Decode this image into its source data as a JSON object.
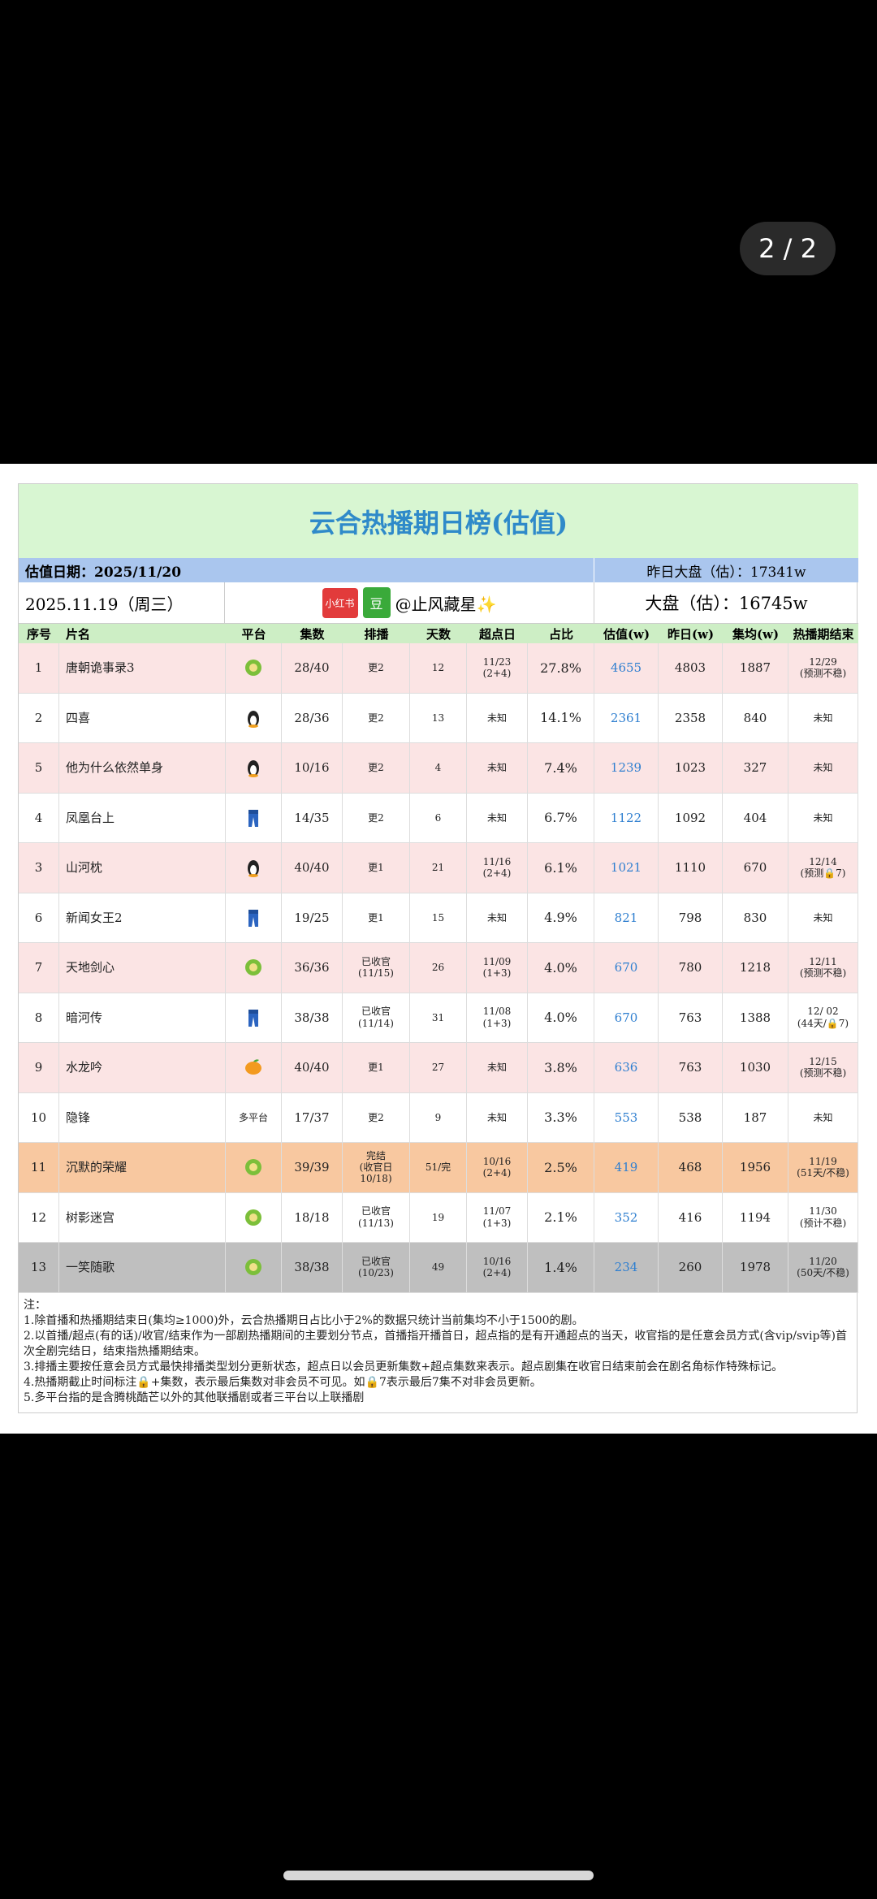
{
  "screen": {
    "page_indicator": "2 / 2"
  },
  "table": {
    "title": "云合热播期日榜(估值)",
    "date_label": "估值日期：2025/11/20",
    "yesterday_total": "昨日大盘（估）：17341w",
    "date": "2025.11.19（周三）",
    "badges": [
      "小红书",
      "豆"
    ],
    "author": "@止风藏星✨",
    "total": "大盘（估）：16745w",
    "headers": [
      "序号",
      "片名",
      "平台",
      "集数",
      "排播",
      "天数",
      "超点日",
      "占比",
      "估值(w)",
      "昨日(w)",
      "集均(w)",
      "热播期结束"
    ],
    "rows": [
      [
        1,
        "唐朝诡事录3",
        null,
        "28/40",
        "更2",
        12,
        [
          "11/23",
          "(2+4)"
        ],
        "27.8%",
        4655,
        4803,
        1887,
        [
          "12/29",
          "(预测不稳)"
        ]
      ],
      [
        2,
        "四喜",
        null,
        "28/36",
        "更2",
        13,
        "未知",
        "14.1%",
        2361,
        2358,
        840,
        "未知"
      ],
      [
        5,
        "他为什么依然单身",
        null,
        "10/16",
        "更2",
        4,
        "未知",
        "7.4%",
        1239,
        1023,
        327,
        "未知"
      ],
      [
        4,
        "凤凰台上",
        null,
        "14/35",
        "更2",
        6,
        "未知",
        "6.7%",
        1122,
        1092,
        404,
        "未知"
      ],
      [
        3,
        "山河枕",
        null,
        "40/40",
        "更1",
        21,
        [
          "11/16",
          "(2+4)"
        ],
        "6.1%",
        1021,
        1110,
        670,
        [
          "12/14",
          "(预测🔒7)"
        ]
      ],
      [
        6,
        "新闻女王2",
        null,
        "19/25",
        "更1",
        15,
        "未知",
        "4.9%",
        821,
        798,
        830,
        "未知"
      ],
      [
        7,
        "天地剑心",
        null,
        "36/36",
        [
          "已收官",
          "(11/15)"
        ],
        26,
        [
          "11/09",
          "(1+3)"
        ],
        "4.0%",
        670,
        780,
        1218,
        [
          "12/11",
          "(预测不稳)"
        ]
      ],
      [
        8,
        "暗河传",
        null,
        "38/38",
        [
          "已收官",
          "(11/14)"
        ],
        31,
        [
          "11/08",
          "(1+3)"
        ],
        "4.0%",
        670,
        763,
        1388,
        [
          "12/ 02",
          "(44天/🔒7)"
        ]
      ],
      [
        9,
        "水龙吟",
        null,
        "40/40",
        "更1",
        27,
        "未知",
        "3.8%",
        636,
        763,
        1030,
        [
          "12/15",
          "(预测不稳)"
        ]
      ],
      [
        10,
        "隐锋",
        "多平台",
        "17/37",
        "更2",
        9,
        "未知",
        "3.3%",
        553,
        538,
        187,
        "未知"
      ],
      [
        11,
        "沉默的荣耀",
        null,
        "39/39",
        [
          "完结",
          "(收官日",
          "10/18)"
        ],
        "51/完",
        [
          "10/16",
          "(2+4)"
        ],
        "2.5%",
        419,
        468,
        1956,
        [
          "11/19",
          "(51天/不稳)"
        ]
      ],
      [
        12,
        "树影迷宫",
        null,
        "18/18",
        [
          "已收官",
          "(11/13)"
        ],
        19,
        [
          "11/07",
          "(1+3)"
        ],
        "2.1%",
        352,
        416,
        1194,
        [
          "11/30",
          "(预计不稳)"
        ]
      ],
      [
        13,
        "一笑随歌",
        null,
        "38/38",
        [
          "已收官",
          "(10/23)"
        ],
        49,
        [
          "10/16",
          "(2+4)"
        ],
        "1.4%",
        234,
        260,
        1978,
        [
          "11/20",
          "(50天/不稳)"
        ]
      ]
    ]
  },
  "notes": [
    "注：",
    "1.除首播和热播期结束日(集均≥1000)外，云合热播期日占比小于2%的数据只统计当前集均不小于1500的剧。",
    "2.以首播/超点(有的话)/收官/结束作为一部剧热播期间的主要划分节点，首播指开播首日，超点指的是有开通超点的当天，收官指的是任意会员方式(含vip/svip等)首次全剧完结日，结束指热播期结束。",
    "3.排播主要按任意会员方式最快排播类型划分更新状态，超点日以会员更新集数+超点集数来表示。超点剧集在收官日结束前会在剧名角标作特殊标记。",
    "4.热播期截止时间标注🔒+集数，表示最后集数对非会员不可见。如🔒7表示最后7集不对非会员更新。",
    "5.多平台指的是含腾桃酷芒以外的其他联播剧或者三平台以上联播剧"
  ]
}
